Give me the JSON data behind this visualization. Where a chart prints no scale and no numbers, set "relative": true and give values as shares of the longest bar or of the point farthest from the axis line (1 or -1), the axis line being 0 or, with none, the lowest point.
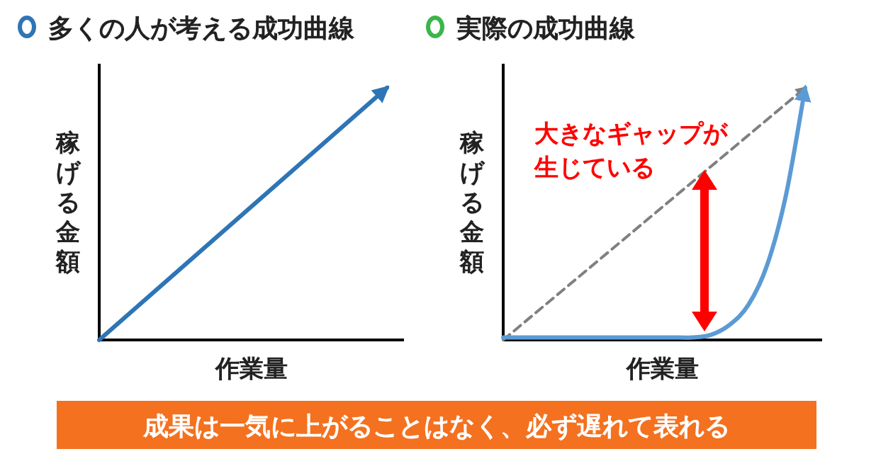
{
  "chart_data": [
    {
      "type": "line",
      "title": "多くの人が考える成功曲線",
      "xlabel": "作業量",
      "ylabel": "稼げる金額",
      "relative": true,
      "categories": [
        null,
        null
      ],
      "series": [
        {
          "color": "#2e75b6",
          "values": [
            0,
            1
          ]
        }
      ]
    },
    {
      "type": "line",
      "title": "実際の成功曲線",
      "xlabel": "作業量",
      "ylabel": "稼げる金額",
      "relative": true,
      "annotations": [
        "大きなギャップが",
        "生じている"
      ],
      "categories": [
        null,
        null,
        null,
        null,
        null,
        null,
        null,
        null,
        null,
        null,
        null,
        null,
        null,
        null,
        null,
        null,
        null
      ],
      "series": [
        {
          "color": "#808080",
          "line_style": "dashed",
          "values": [
            0,
            0.0625,
            0.125,
            0.1875,
            0.25,
            0.3125,
            0.375,
            0.4375,
            0.5,
            0.5625,
            0.625,
            0.6875,
            0.75,
            0.8125,
            0.875,
            0.9375,
            1
          ]
        },
        {
          "color": "#5b9bd5",
          "values": [
            0.01,
            0.01,
            0.01,
            0.01,
            0.01,
            0.01,
            0.01,
            0.01,
            0.01,
            0.01,
            0.01,
            0.02,
            0.06,
            0.14,
            0.3,
            0.58,
            1
          ]
        }
      ]
    },
    {
      "type": "other",
      "annotations": [
        "成果は一気に上がることはなく、必ず遅れて表れる"
      ]
    }
  ]
}
